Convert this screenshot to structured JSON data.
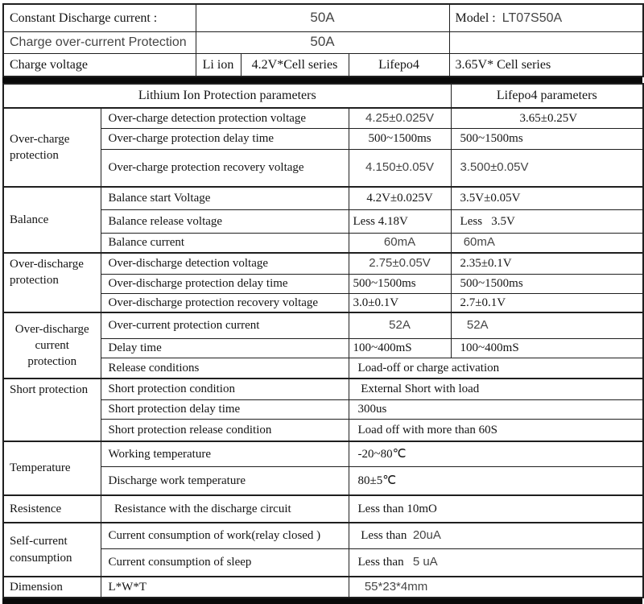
{
  "colors": {
    "background": "#ffffff",
    "line": "#1f1f1f",
    "text": "#141414",
    "edited_value_text": "#454545",
    "divider_band": "#0a0a0a"
  },
  "top": {
    "heights": [
      34,
      27,
      29
    ],
    "rows": [
      {
        "cells": [
          {
            "t": "Constant Discharge current :",
            "n": "constant-discharge-current-label"
          },
          {
            "t": "50A",
            "f": "sans",
            "al": "c",
            "cs": 3,
            "big": true,
            "n": "constant-discharge-current-value"
          },
          {
            "parts": [
              {
                "t": "Model :  "
              },
              {
                "t": "LT07S50A",
                "f": "sans"
              }
            ],
            "n": "model-cell"
          }
        ]
      },
      {
        "cells": [
          {
            "t": "Charge over-current Protection",
            "f": "sans",
            "n": "charge-over-current-label"
          },
          {
            "t": "50A",
            "f": "sans",
            "al": "c",
            "cs": 3,
            "big": true,
            "n": "charge-over-current-value"
          },
          {
            "t": "",
            "n": "empty-cell"
          }
        ]
      },
      {
        "cells": [
          {
            "t": "Charge voltage",
            "n": "charge-voltage-label"
          },
          {
            "t": "Li ion",
            "al": "c",
            "n": "li-ion-chemistry-label"
          },
          {
            "t": "4.2V*Cell series",
            "al": "c",
            "n": "li-ion-charge-voltage-value"
          },
          {
            "t": "Lifepo4",
            "al": "c",
            "n": "lifepo4-chemistry-label"
          },
          {
            "t": "3.65V* Cell series",
            "n": "lifepo4-charge-voltage-value"
          }
        ]
      }
    ]
  },
  "main_header": {
    "left": "Lithium Ion Protection parameters",
    "right": "Lifepo4 parameters"
  },
  "groups": [
    {
      "label": "Over-charge protection",
      "rows": [
        {
          "h": 25,
          "param": {
            "t": "Over-charge detection protection voltage"
          },
          "v1": {
            "t": "4.25±0.025V",
            "f": "sans",
            "al": "c"
          },
          "v2": {
            "t": "3.65±0.25V",
            "al": "c"
          }
        },
        {
          "h": 26,
          "param": {
            "t": "Over-charge protection delay time"
          },
          "v1": {
            "t": "500~1500ms",
            "al": "c"
          },
          "v2": {
            "t": "500~1500ms"
          }
        },
        {
          "h": 47,
          "param": {
            "t": "Over-charge protection recovery voltage"
          },
          "v1": {
            "t": "4.150±0.05V",
            "f": "sans",
            "al": "c"
          },
          "v2": {
            "t": "3.500±0.05V",
            "f": "sans"
          }
        }
      ]
    },
    {
      "label": "Balance",
      "rows": [
        {
          "h": 28,
          "param": {
            "t": "Balance start Voltage"
          },
          "v1": {
            "t": "4.2V±0.025V",
            "al": "c"
          },
          "v2": {
            "t": "3.5V±0.05V"
          }
        },
        {
          "h": 29,
          "param": {
            "t": "Balance release voltage"
          },
          "v1": {
            "t": "Less 4.18V"
          },
          "v2": {
            "t": "Less   3.5V"
          }
        },
        {
          "h": 25,
          "param": {
            "t": "Balance current"
          },
          "v1": {
            "t": "60mA",
            "f": "sans",
            "al": "c"
          },
          "v2": {
            "t": " 60mA",
            "f": "sans"
          }
        }
      ]
    },
    {
      "label": "Over-discharge protection",
      "va": "t",
      "rows": [
        {
          "h": 26,
          "param": {
            "t": "Over-discharge detection voltage"
          },
          "v1": {
            "t": "2.75±0.05V",
            "f": "sans",
            "al": "c"
          },
          "v2": {
            "t": "2.35±0.1V"
          }
        },
        {
          "h": 24,
          "param": {
            "t": "Over-discharge protection delay time"
          },
          "v1": {
            "t": "500~1500ms"
          },
          "v2": {
            "t": "500~1500ms"
          }
        },
        {
          "h": 24,
          "param": {
            "t": "Over-discharge protection recovery voltage"
          },
          "v1": {
            "t": "3.0±0.1V"
          },
          "v2": {
            "t": "2.7±0.1V"
          }
        }
      ]
    },
    {
      "label": "Over-discharge current protection",
      "la": "c",
      "rows": [
        {
          "h": 32,
          "param": {
            "t": "Over-current protection current"
          },
          "v1": {
            "t": "52A",
            "f": "sans",
            "al": "c"
          },
          "v2": {
            "t": "  52A",
            "f": "sans"
          }
        },
        {
          "h": 24,
          "param": {
            "t": "Delay time"
          },
          "v1": {
            "t": "100~400mS"
          },
          "v2": {
            "t": "100~400mS"
          }
        },
        {
          "h": 26,
          "param": {
            "t": "Release conditions"
          },
          "span": {
            "t": "Load-off or charge activation"
          }
        }
      ]
    },
    {
      "label": "Short protection",
      "va": "t",
      "rows": [
        {
          "h": 26,
          "param": {
            "t": "Short protection condition"
          },
          "span": {
            "t": " External Short with load"
          }
        },
        {
          "h": 24,
          "param": {
            "t": "Short protection delay time"
          },
          "span": {
            "t": "300us"
          }
        },
        {
          "h": 28,
          "param": {
            "t": "Short protection release condition"
          },
          "span": {
            "t": "Load off with more than 60S"
          }
        }
      ]
    },
    {
      "label": "Temperature",
      "rows": [
        {
          "h": 31,
          "param": {
            "t": "Working temperature"
          },
          "span": {
            "t": "-20~80℃"
          }
        },
        {
          "h": 36,
          "param": {
            "t": "Discharge work temperature"
          },
          "span": {
            "t": "80±5℃"
          }
        }
      ]
    },
    {
      "label": "Resistence",
      "rows": [
        {
          "h": 34,
          "param": {
            "t": "  Resistance with the discharge circuit"
          },
          "span": {
            "t": "Less than 10mO"
          }
        }
      ]
    },
    {
      "label": "Self-current consumption",
      "rows": [
        {
          "h": 32,
          "param": {
            "t": "Current consumption of work(relay closed )"
          },
          "span": {
            "parts": [
              {
                "t": " Less than  "
              },
              {
                "t": "20uA",
                "f": "sans"
              }
            ]
          }
        },
        {
          "h": 35,
          "param": {
            "t": "Current consumption of sleep"
          },
          "span": {
            "parts": [
              {
                "t": "Less than   "
              },
              {
                "t": "5 uA",
                "f": "sans"
              }
            ]
          }
        }
      ]
    },
    {
      "label": "Dimension",
      "rows": [
        {
          "h": 26,
          "param": {
            "t": "L*W*T"
          },
          "span": {
            "t": "  55*23*4mm",
            "f": "sans"
          }
        }
      ]
    }
  ]
}
